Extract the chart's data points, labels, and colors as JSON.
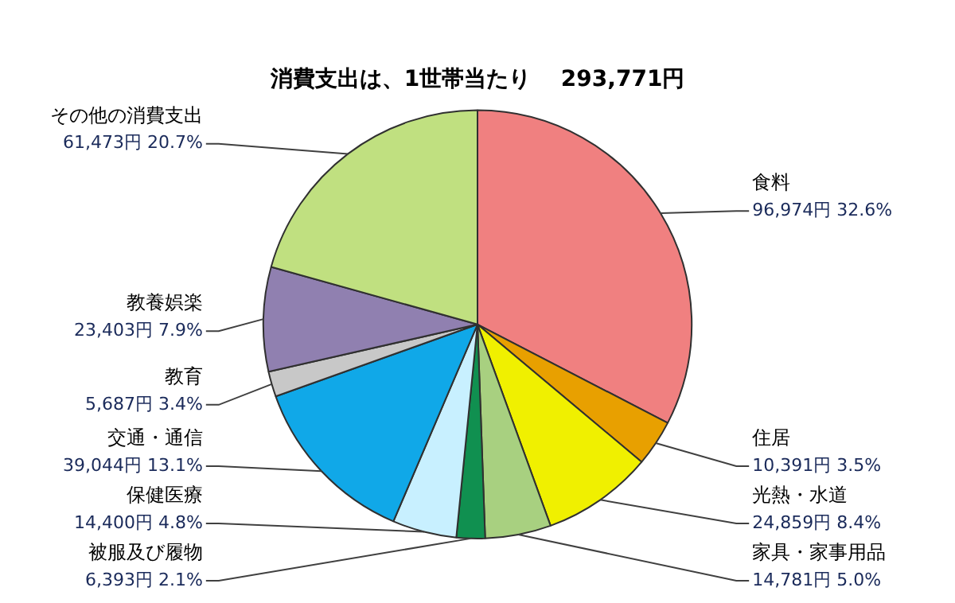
{
  "chart_data": {
    "type": "pie",
    "title": "消費支出は、1世帯当たり　 293,771円",
    "categories": [
      "食料",
      "住居",
      "光熱・水道",
      "家具・家事用品",
      "被服及び履物",
      "保健医療",
      "交通・通信",
      "教育",
      "教養娯楽",
      "その他の消費支出"
    ],
    "values": [
      96974,
      10391,
      24859,
      14781,
      6393,
      14400,
      39044,
      5687,
      23403,
      61473
    ],
    "value_labels": [
      "96,974円 32.6%",
      "10,391円 3.5%",
      "24,859円 8.4%",
      "14,781円 5.0%",
      "6,393円 2.1%",
      "14,400円 4.8%",
      "39,044円 13.1%",
      "5,687円 3.4%",
      "23,403円 7.9%",
      "61,473円 20.7%"
    ],
    "colors": [
      "#f08080",
      "#e8a000",
      "#f0f000",
      "#a8d080",
      "#109050",
      "#c8f0ff",
      "#10a8e8",
      "#c8c8c8",
      "#9080b0",
      "#c0e080"
    ],
    "legend": false
  }
}
